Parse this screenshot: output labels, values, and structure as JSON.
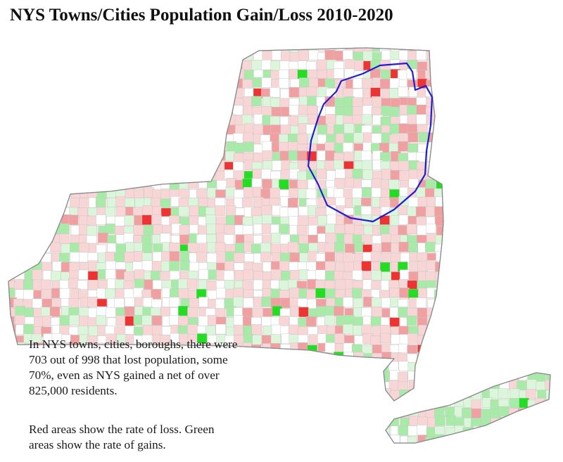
{
  "title": "NYS Towns/Cities Population Gain/Loss 2010-2020",
  "caption": {
    "paragraph1": [
      "In NYS towns, cities, boroughs, there were",
      "703 out of 998 that lost population, some",
      "70%, even as NYS gained a net of over",
      "825,000 residents."
    ],
    "paragraph2": [
      "Red areas show the rate of loss. Green",
      "areas show the rate of gains."
    ]
  },
  "colors": {
    "loss_strong": "#ee3333",
    "loss_medium": "#f0a0a0",
    "loss_light": "#f8d6d6",
    "gain_strong": "#22dd22",
    "gain_medium": "#a8eba8",
    "gain_light": "#dcf6dc",
    "neutral": "#ffffff",
    "boundary": "#1f1fd0",
    "municipal_lines": "#c8c8c8"
  },
  "map": {
    "region": "New York State",
    "highlighted_boundary": "Adirondack Park"
  }
}
